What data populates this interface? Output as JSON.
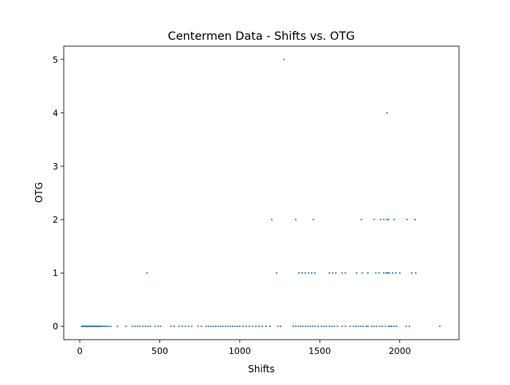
{
  "chart_data": {
    "type": "scatter",
    "title": "Centermen Data - Shifts vs. OTG",
    "xlabel": "Shifts",
    "ylabel": "OTG",
    "xlim": [
      -100,
      2370
    ],
    "ylim": [
      -0.25,
      5.25
    ],
    "xticks": [
      0,
      500,
      1000,
      1500,
      2000
    ],
    "yticks": [
      0,
      1,
      2,
      3,
      4,
      5
    ],
    "grid": false,
    "marker_color": "#1f77b4",
    "series": [
      {
        "points": [
          [
            12,
            0
          ],
          [
            18,
            0
          ],
          [
            22,
            0
          ],
          [
            26,
            0
          ],
          [
            30,
            0
          ],
          [
            34,
            0
          ],
          [
            38,
            0
          ],
          [
            42,
            0
          ],
          [
            46,
            0
          ],
          [
            50,
            0
          ],
          [
            54,
            0
          ],
          [
            58,
            0
          ],
          [
            62,
            0
          ],
          [
            66,
            0
          ],
          [
            70,
            0
          ],
          [
            74,
            0
          ],
          [
            78,
            0
          ],
          [
            82,
            0
          ],
          [
            86,
            0
          ],
          [
            90,
            0
          ],
          [
            95,
            0
          ],
          [
            100,
            0
          ],
          [
            105,
            0
          ],
          [
            110,
            0
          ],
          [
            115,
            0
          ],
          [
            120,
            0
          ],
          [
            126,
            0
          ],
          [
            132,
            0
          ],
          [
            140,
            0
          ],
          [
            150,
            0
          ],
          [
            160,
            0
          ],
          [
            170,
            0
          ],
          [
            180,
            0
          ],
          [
            195,
            0
          ],
          [
            235,
            0
          ],
          [
            290,
            0
          ],
          [
            330,
            0
          ],
          [
            345,
            0
          ],
          [
            360,
            0
          ],
          [
            375,
            0
          ],
          [
            395,
            0
          ],
          [
            410,
            0
          ],
          [
            425,
            0
          ],
          [
            440,
            0
          ],
          [
            470,
            0
          ],
          [
            490,
            0
          ],
          [
            505,
            0
          ],
          [
            570,
            0
          ],
          [
            590,
            0
          ],
          [
            620,
            0
          ],
          [
            640,
            0
          ],
          [
            660,
            0
          ],
          [
            680,
            0
          ],
          [
            700,
            0
          ],
          [
            740,
            0
          ],
          [
            760,
            0
          ],
          [
            790,
            0
          ],
          [
            805,
            0
          ],
          [
            820,
            0
          ],
          [
            835,
            0
          ],
          [
            850,
            0
          ],
          [
            865,
            0
          ],
          [
            880,
            0
          ],
          [
            895,
            0
          ],
          [
            910,
            0
          ],
          [
            925,
            0
          ],
          [
            940,
            0
          ],
          [
            955,
            0
          ],
          [
            970,
            0
          ],
          [
            985,
            0
          ],
          [
            1000,
            0
          ],
          [
            1020,
            0
          ],
          [
            1040,
            0
          ],
          [
            1060,
            0
          ],
          [
            1080,
            0
          ],
          [
            1100,
            0
          ],
          [
            1120,
            0
          ],
          [
            1140,
            0
          ],
          [
            1165,
            0
          ],
          [
            1190,
            0
          ],
          [
            1240,
            0
          ],
          [
            1255,
            0
          ],
          [
            1335,
            0
          ],
          [
            1350,
            0
          ],
          [
            1365,
            0
          ],
          [
            1380,
            0
          ],
          [
            1395,
            0
          ],
          [
            1410,
            0
          ],
          [
            1425,
            0
          ],
          [
            1440,
            0
          ],
          [
            1455,
            0
          ],
          [
            1470,
            0
          ],
          [
            1490,
            0
          ],
          [
            1510,
            0
          ],
          [
            1525,
            0
          ],
          [
            1540,
            0
          ],
          [
            1560,
            0
          ],
          [
            1575,
            0
          ],
          [
            1590,
            0
          ],
          [
            1610,
            0
          ],
          [
            1640,
            0
          ],
          [
            1660,
            0
          ],
          [
            1690,
            0
          ],
          [
            1710,
            0
          ],
          [
            1725,
            0
          ],
          [
            1740,
            0
          ],
          [
            1755,
            0
          ],
          [
            1770,
            0
          ],
          [
            1790,
            0
          ],
          [
            1800,
            0
          ],
          [
            1825,
            0
          ],
          [
            1840,
            0
          ],
          [
            1855,
            0
          ],
          [
            1875,
            0
          ],
          [
            1890,
            0
          ],
          [
            1910,
            0
          ],
          [
            1930,
            0
          ],
          [
            1940,
            0
          ],
          [
            1950,
            0
          ],
          [
            1965,
            0
          ],
          [
            1980,
            0
          ],
          [
            2040,
            0
          ],
          [
            2060,
            0
          ],
          [
            2250,
            0
          ],
          [
            420,
            1
          ],
          [
            1230,
            1
          ],
          [
            1370,
            1
          ],
          [
            1390,
            1
          ],
          [
            1410,
            1
          ],
          [
            1430,
            1
          ],
          [
            1450,
            1
          ],
          [
            1470,
            1
          ],
          [
            1560,
            1
          ],
          [
            1580,
            1
          ],
          [
            1600,
            1
          ],
          [
            1640,
            1
          ],
          [
            1660,
            1
          ],
          [
            1730,
            1
          ],
          [
            1765,
            1
          ],
          [
            1800,
            1
          ],
          [
            1850,
            1
          ],
          [
            1870,
            1
          ],
          [
            1900,
            1
          ],
          [
            1915,
            1
          ],
          [
            1925,
            1
          ],
          [
            1935,
            1
          ],
          [
            1955,
            1
          ],
          [
            1975,
            1
          ],
          [
            2000,
            1
          ],
          [
            2075,
            1
          ],
          [
            2100,
            1
          ],
          [
            1200,
            2
          ],
          [
            1350,
            2
          ],
          [
            1460,
            2
          ],
          [
            1760,
            2
          ],
          [
            1840,
            2
          ],
          [
            1880,
            2
          ],
          [
            1900,
            2
          ],
          [
            1920,
            2
          ],
          [
            1930,
            2
          ],
          [
            1965,
            2
          ],
          [
            2045,
            2
          ],
          [
            2095,
            2
          ],
          [
            1920,
            4
          ],
          [
            1275,
            5
          ]
        ]
      }
    ]
  }
}
